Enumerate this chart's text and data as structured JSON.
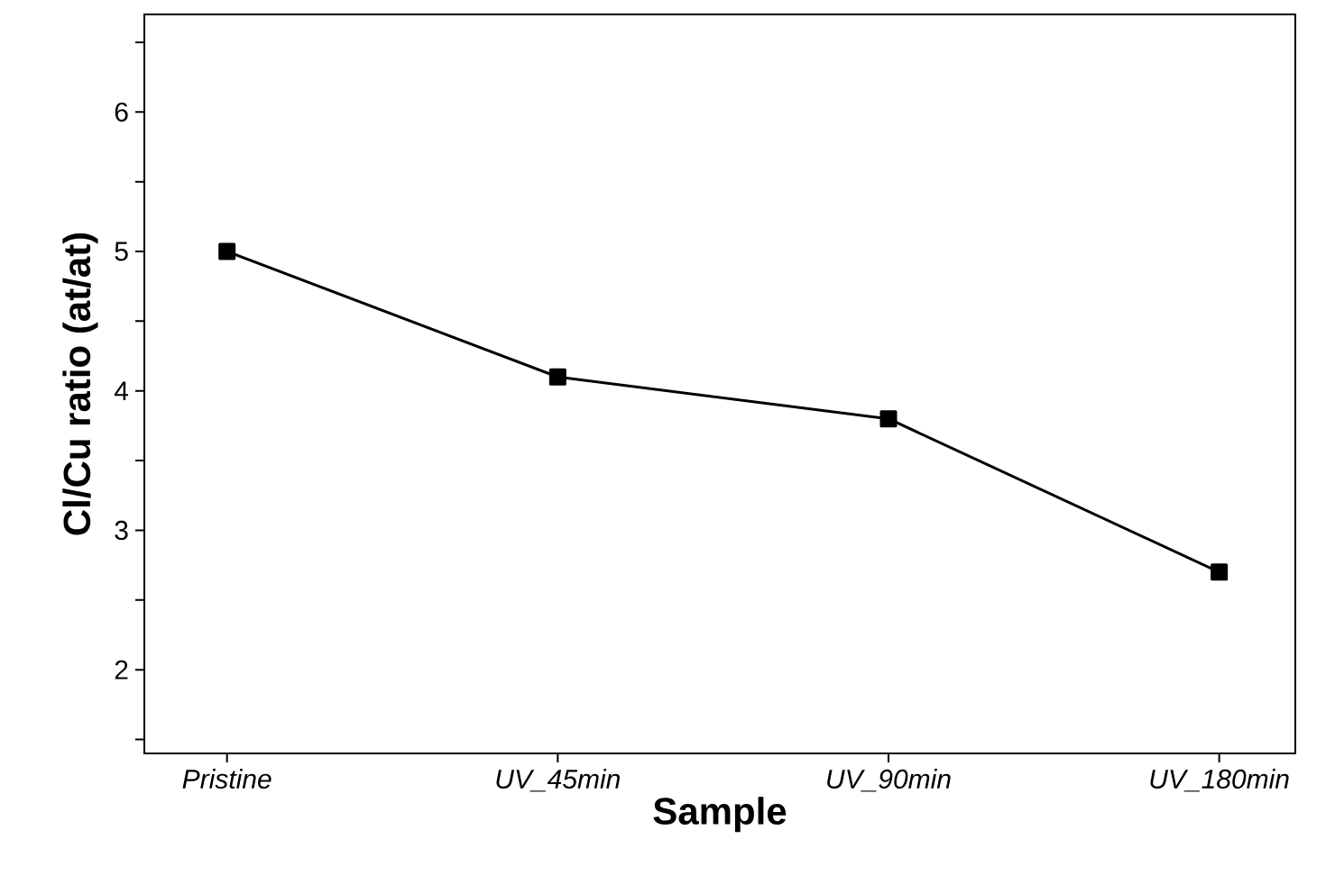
{
  "chart_data": {
    "type": "line",
    "xlabel": "Sample",
    "ylabel": "Cl/Cu ratio (at/at)",
    "categories": [
      "Pristine",
      "UV_45min",
      "UV_90min",
      "UV_180min"
    ],
    "series": [
      {
        "color": "#000000",
        "values": [
          5.0,
          4.1,
          3.8,
          2.7
        ]
      }
    ],
    "ylim": [
      1.4,
      6.7
    ],
    "yticks": [
      {
        "value": 1.5,
        "label": null
      },
      2,
      {
        "value": 2.5,
        "label": null
      },
      3,
      {
        "value": 3.5,
        "label": null
      },
      4,
      {
        "value": 4.5,
        "label": null
      },
      5,
      {
        "value": 5.5,
        "label": null
      },
      6,
      {
        "value": 6.5,
        "label": null
      }
    ],
    "marker": "square",
    "line_style": "solid",
    "grid": false
  }
}
